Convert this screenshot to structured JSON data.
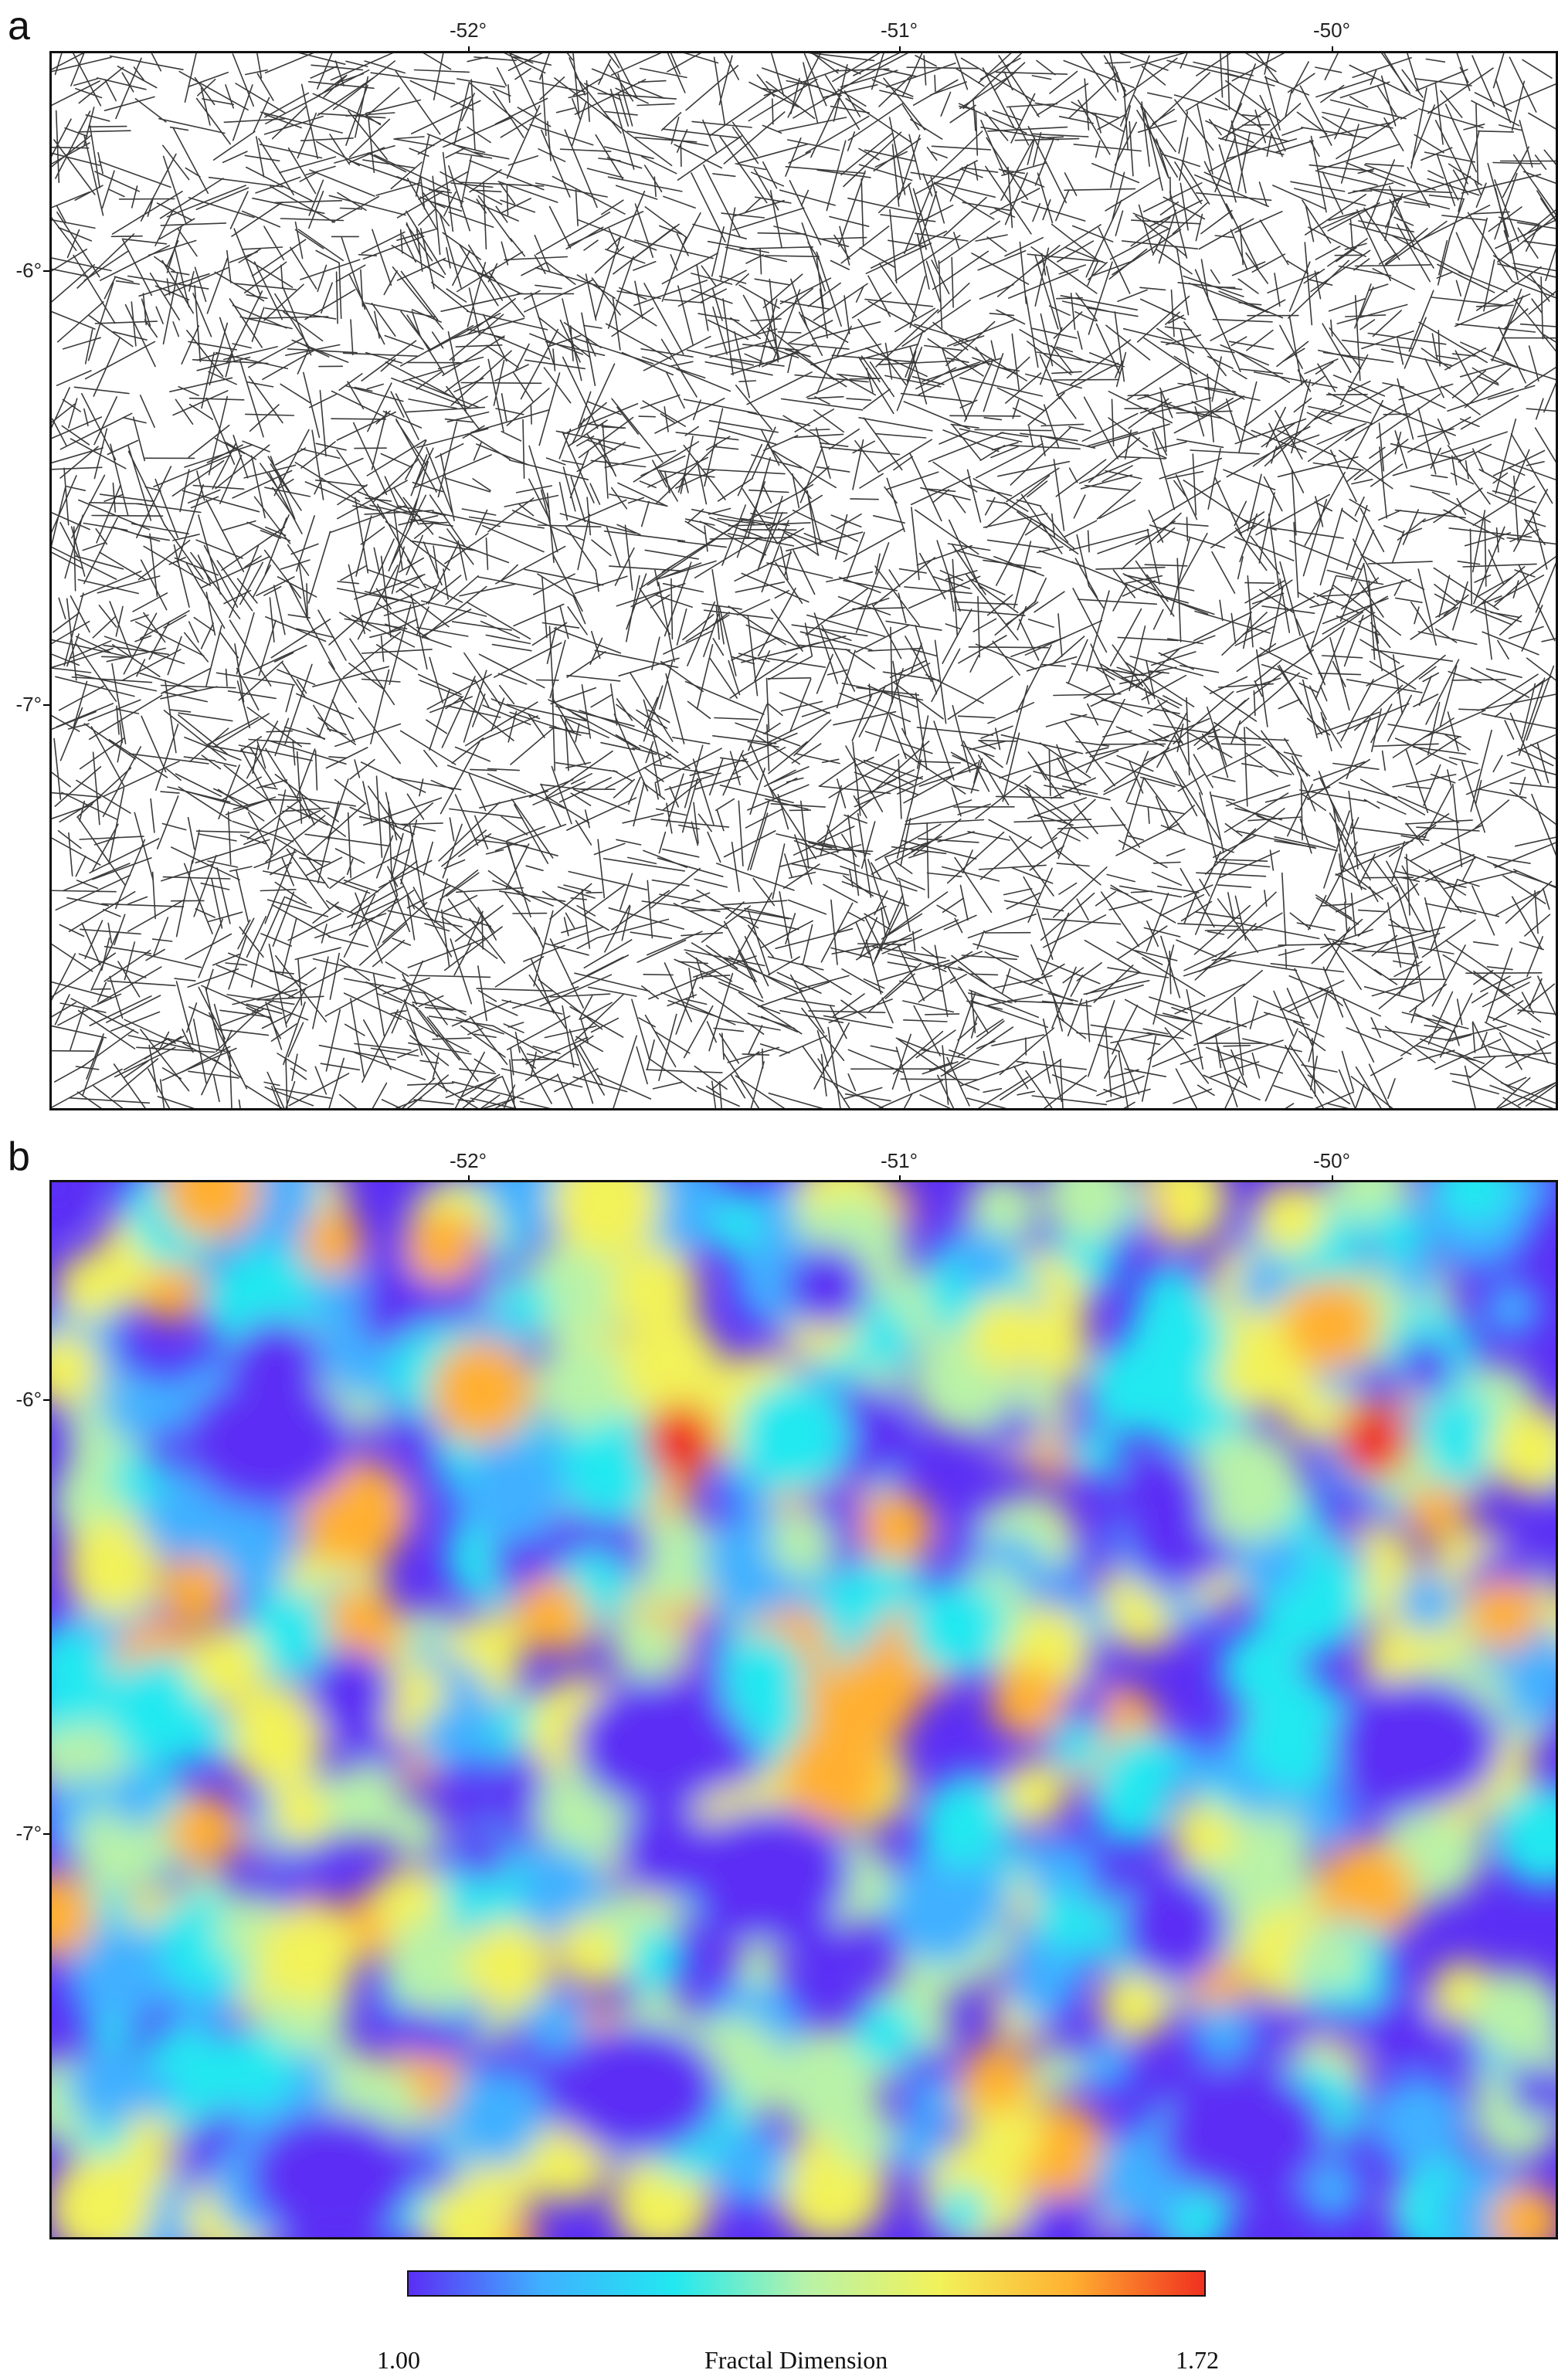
{
  "panels": [
    {
      "letter": "a",
      "kind": "lineament-map",
      "x_ticks": [
        "-52°",
        "-51°",
        "-50°"
      ],
      "y_ticks": [
        "-6°",
        "-7°"
      ],
      "line_color": "#3a3a3a"
    },
    {
      "letter": "b",
      "kind": "fractal-dimension-heatmap",
      "x_ticks": [
        "-52°",
        "-51°",
        "-50°"
      ],
      "y_ticks": [
        "-6°",
        "-7°"
      ]
    }
  ],
  "colorbar": {
    "title": "Fractal Dimension",
    "min_label": "1.00",
    "max_label": "1.72",
    "min": 1.0,
    "max": 1.72,
    "colors": [
      "#5b2ef5",
      "#3fb0ff",
      "#22e8f0",
      "#b8f2a8",
      "#f2f25a",
      "#ffb030",
      "#f03020"
    ]
  },
  "chart_data": [
    {
      "type": "map",
      "title": "",
      "x_axis": {
        "label": "",
        "ticks": [
          -52,
          -51,
          -50
        ]
      },
      "y_axis": {
        "label": "",
        "ticks": [
          -6,
          -7
        ]
      },
      "content": "lineaments"
    },
    {
      "type": "heatmap",
      "title": "",
      "x_axis": {
        "label": "",
        "ticks": [
          -52,
          -51,
          -50
        ]
      },
      "y_axis": {
        "label": "",
        "ticks": [
          -6,
          -7
        ]
      },
      "value_range": [
        1.0,
        1.72
      ],
      "colorbar_label": "Fractal Dimension",
      "hotspots": [
        {
          "lon": -49.9,
          "lat": -6.1,
          "value": 1.7
        },
        {
          "lon": -51.5,
          "lat": -6.1,
          "value": 1.68
        },
        {
          "lon": -52.05,
          "lat": -5.65,
          "value": 1.62
        },
        {
          "lon": -49.6,
          "lat": -6.5,
          "value": 1.6
        },
        {
          "lon": -51.8,
          "lat": -6.5,
          "value": 1.58
        },
        {
          "lon": -52.6,
          "lat": -7.0,
          "value": 1.58
        },
        {
          "lon": -51.0,
          "lat": -6.3,
          "value": 1.6
        },
        {
          "lon": -50.7,
          "lat": -6.7,
          "value": 1.58
        }
      ],
      "lows": [
        {
          "lon": -52.45,
          "lat": -6.1,
          "value": 1.0
        },
        {
          "lon": -51.3,
          "lat": -7.1,
          "value": 1.0
        },
        {
          "lon": -51.55,
          "lat": -6.8,
          "value": 1.0
        },
        {
          "lon": -49.8,
          "lat": -6.8,
          "value": 1.0
        },
        {
          "lon": -49.2,
          "lat": -7.6,
          "value": 1.0
        },
        {
          "lon": -52.3,
          "lat": -7.8,
          "value": 1.0
        },
        {
          "lon": -51.6,
          "lat": -7.6,
          "value": 1.0
        },
        {
          "lon": -50.2,
          "lat": -7.7,
          "value": 1.0
        }
      ]
    }
  ]
}
